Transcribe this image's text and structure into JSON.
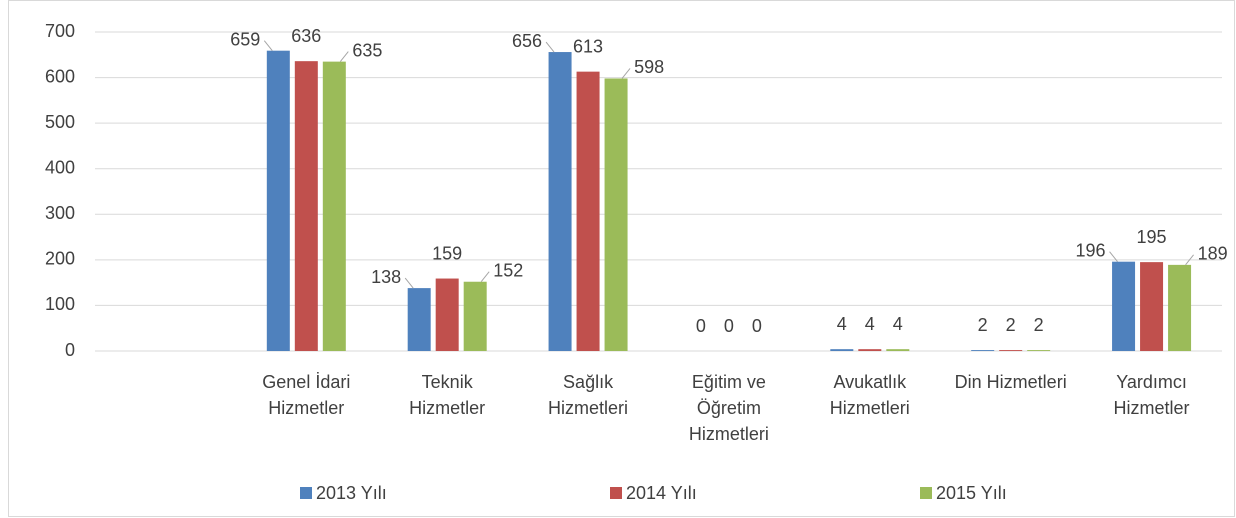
{
  "chart_data": {
    "type": "bar",
    "categories": [
      null,
      "Genel İdari Hizmetler",
      "Teknik Hizmetler",
      "Sağlık Hizmetleri",
      "Eğitim ve Öğretim Hizmetleri",
      "Avukatlık Hizmetleri",
      "Din Hizmetleri",
      "Yardımcı Hizmetler"
    ],
    "series": [
      {
        "name": "2013 Yılı",
        "color": "#4f81bd",
        "values": [
          null,
          659,
          138,
          656,
          0,
          4,
          2,
          196
        ]
      },
      {
        "name": "2014 Yılı",
        "color": "#c0504d",
        "values": [
          null,
          636,
          159,
          613,
          0,
          4,
          2,
          195
        ]
      },
      {
        "name": "2015 Yılı",
        "color": "#9bbb59",
        "values": [
          null,
          635,
          152,
          598,
          0,
          4,
          2,
          189
        ]
      }
    ],
    "ylim": [
      0,
      700
    ],
    "yticks": [
      0,
      100,
      200,
      300,
      400,
      500,
      600,
      700
    ],
    "grid": true,
    "legend": "bottom"
  }
}
